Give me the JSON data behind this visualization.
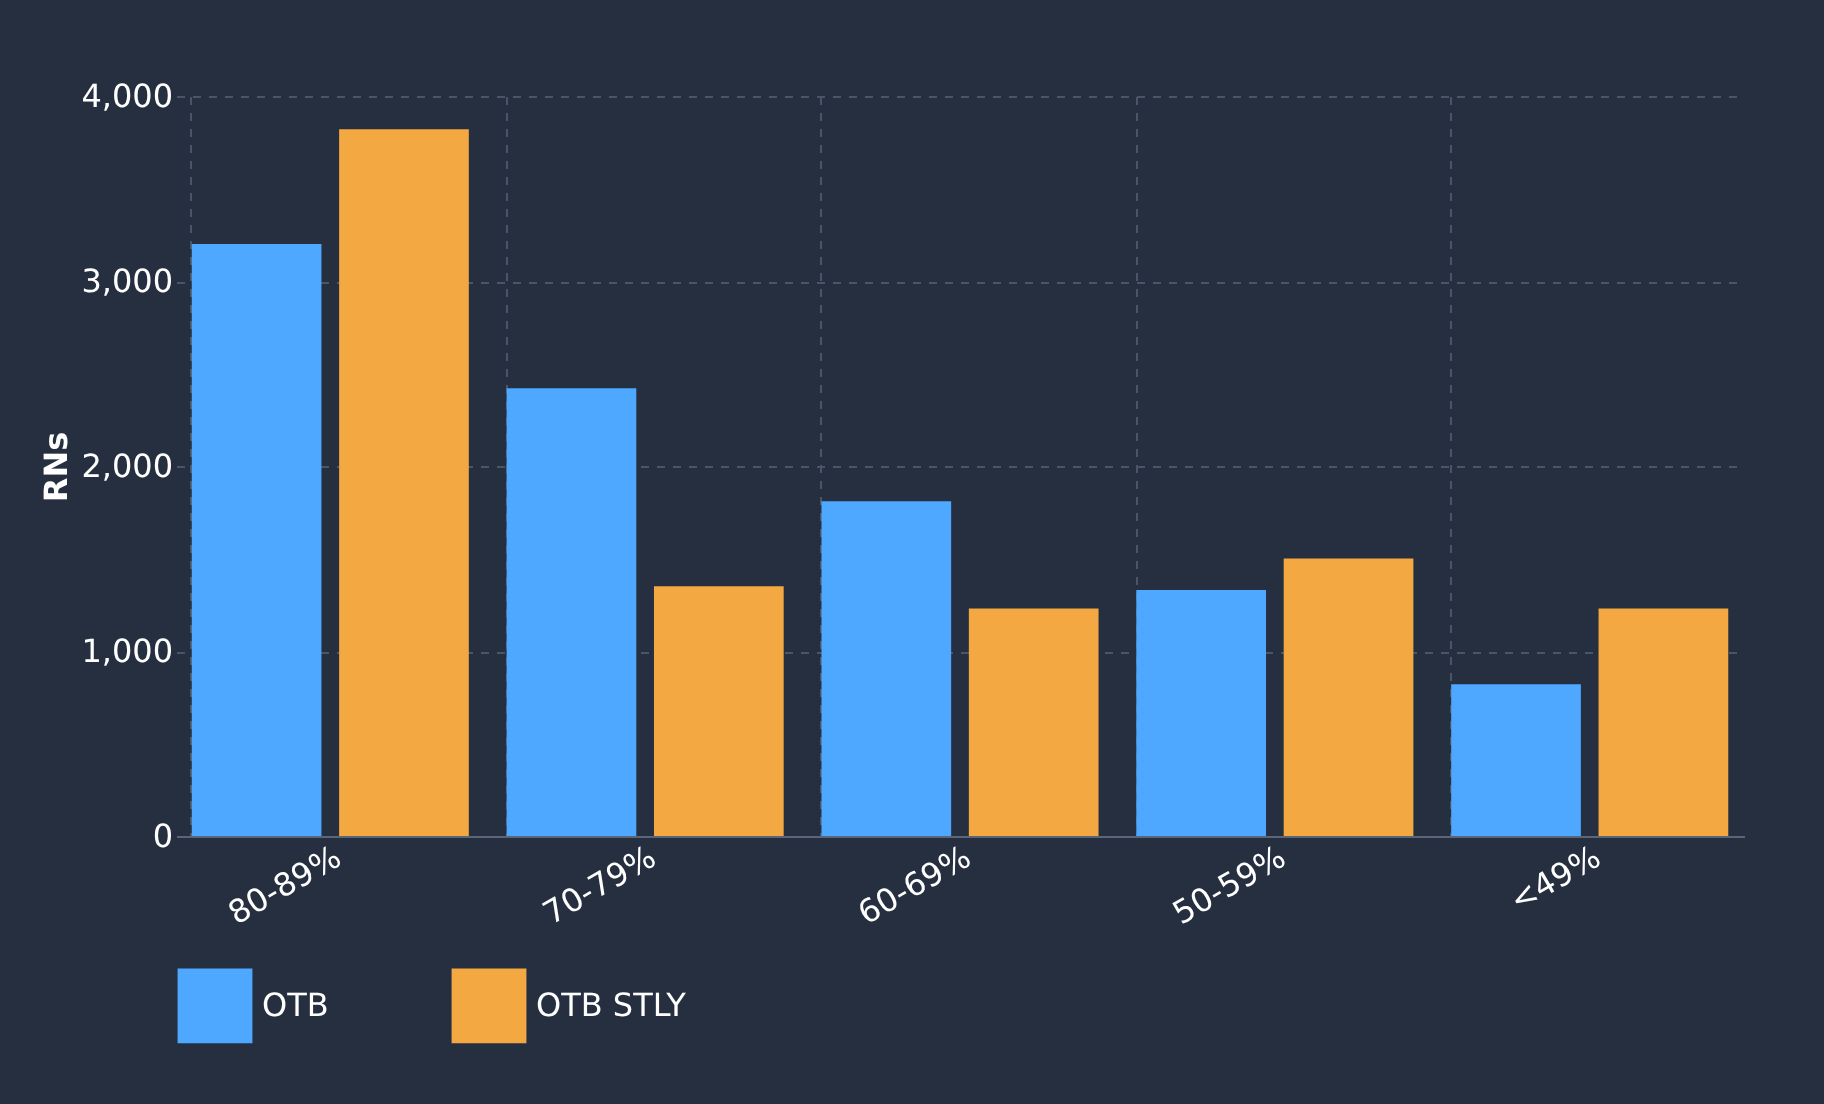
{
  "chart_data": {
    "type": "bar",
    "ylabel": "RNs",
    "categories": [
      "80-89%",
      "70-79%",
      "60-69%",
      "50-59%",
      "<49%"
    ],
    "series": [
      {
        "name": "OTB",
        "color": "#4ea8ff",
        "values": [
          3200,
          2420,
          1810,
          1330,
          820
        ]
      },
      {
        "name": "OTB STLY",
        "color": "#f4a842",
        "values": [
          3820,
          1350,
          1230,
          1500,
          1230
        ]
      }
    ],
    "ylim": [
      0,
      4000
    ],
    "yticks": [
      0,
      {
        "value": 1000,
        "label": "1,000"
      },
      {
        "value": 2000,
        "label": "2,000"
      },
      {
        "value": 3000,
        "label": "3,000"
      },
      {
        "value": 4000,
        "label": "4,000"
      }
    ],
    "grid": true,
    "legend": "bottom"
  }
}
